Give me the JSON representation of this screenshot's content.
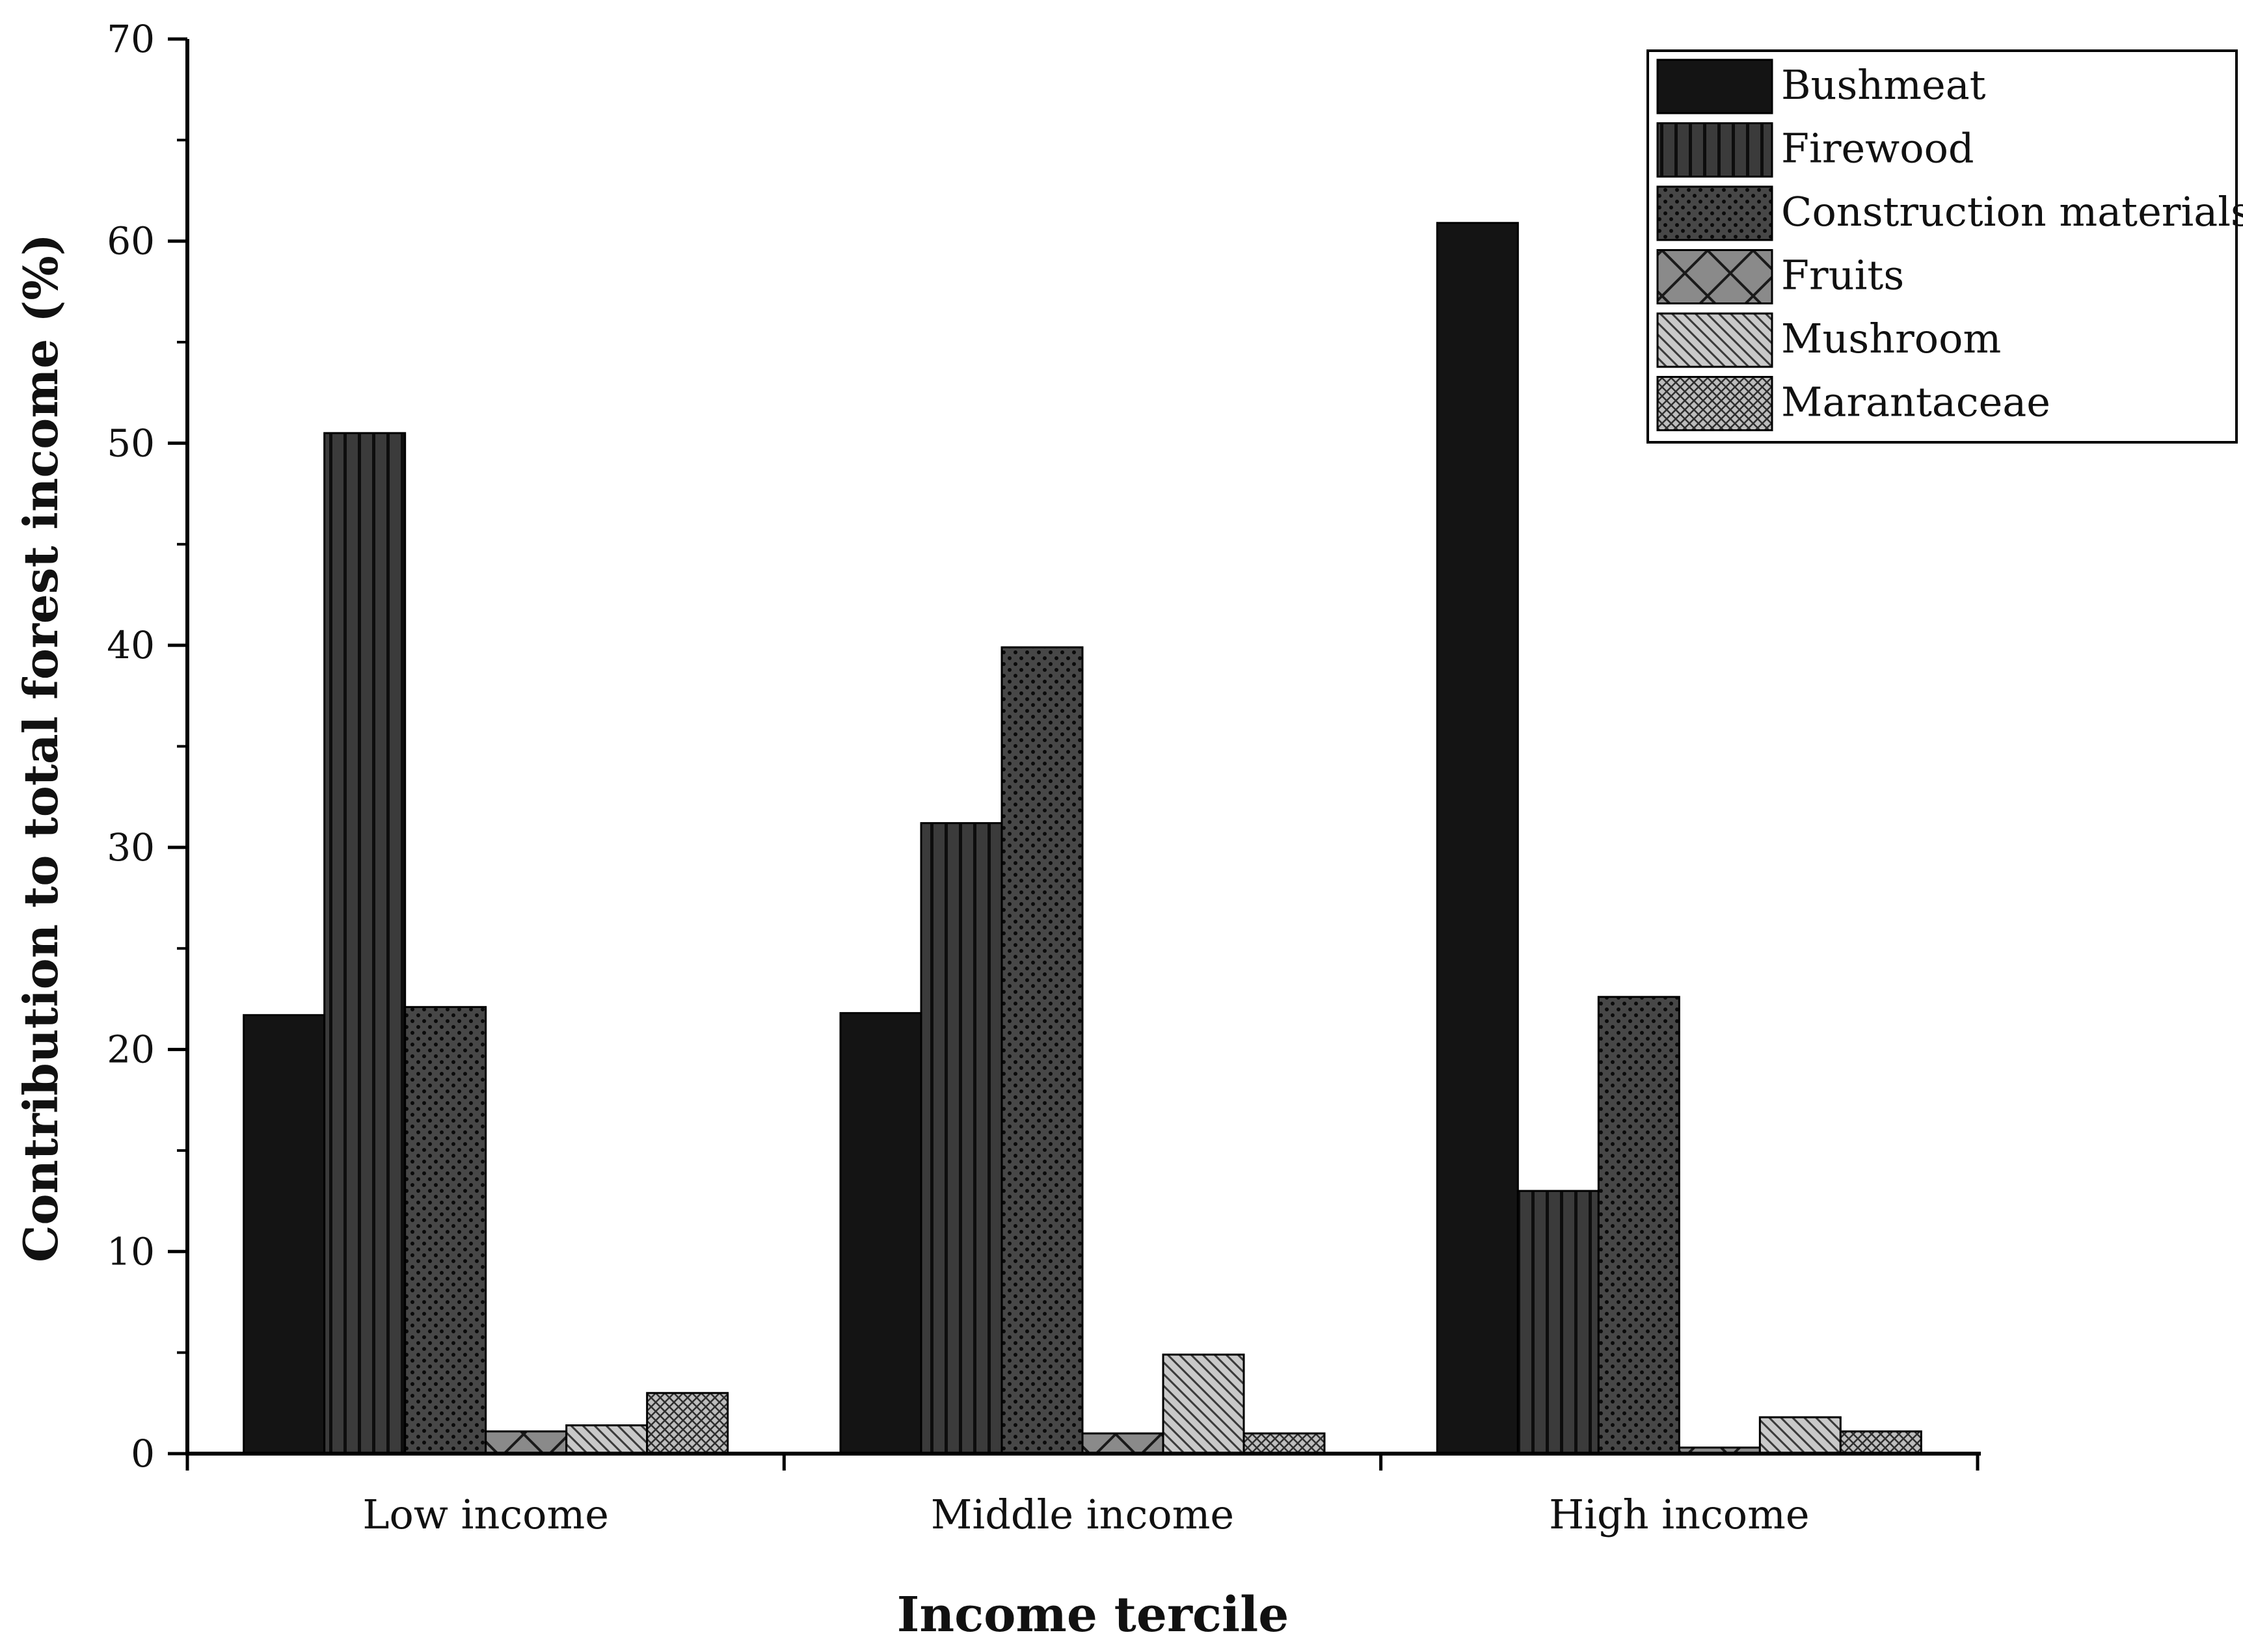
{
  "chart_data": {
    "type": "bar",
    "title": "",
    "xlabel": "Income tercile",
    "ylabel": "Contribution to total forest income (%)",
    "ylim": [
      0,
      70
    ],
    "yticks": [
      0,
      10,
      20,
      30,
      40,
      50,
      60,
      70
    ],
    "ytick_labels": [
      "0",
      "10",
      "20",
      "30",
      "40",
      "50",
      "60",
      "70"
    ],
    "categories": [
      "Low income",
      "Middle income",
      "High income"
    ],
    "legend_position": "top-right",
    "series": [
      {
        "name": "Bushmeat",
        "values": [
          21.7,
          21.8,
          60.9
        ],
        "pattern": "solid-black"
      },
      {
        "name": "Firewood",
        "values": [
          50.5,
          31.2,
          13.0
        ],
        "pattern": "vertical-lines"
      },
      {
        "name": "Construction materials",
        "values": [
          22.1,
          39.9,
          22.6
        ],
        "pattern": "dots"
      },
      {
        "name": "Fruits",
        "values": [
          1.1,
          1.0,
          0.3
        ],
        "pattern": "crosshatch-x"
      },
      {
        "name": "Mushroom",
        "values": [
          1.4,
          4.9,
          1.8
        ],
        "pattern": "diagonal-lines"
      },
      {
        "name": "Marantaceae",
        "values": [
          3.0,
          1.0,
          1.1
        ],
        "pattern": "fine-grid"
      }
    ]
  }
}
